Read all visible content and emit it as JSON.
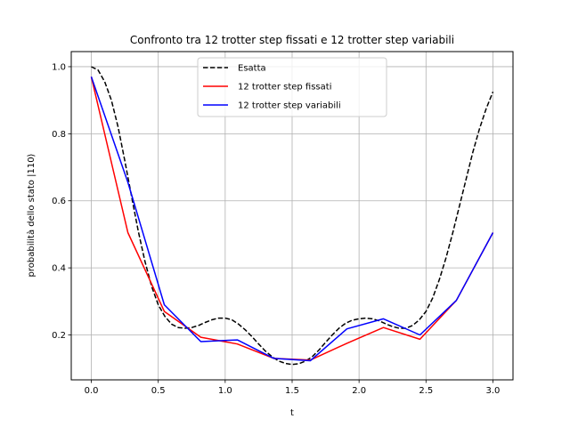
{
  "chart_data": {
    "type": "line",
    "title": "Confronto tra 12 trotter step fissati e 12 trotter step variabili",
    "xlabel": "t",
    "ylabel": "probabilità dello stato |110⟩",
    "xlim": [
      -0.15,
      3.15
    ],
    "ylim": [
      0.066,
      1.045
    ],
    "xticks": [
      0.0,
      0.5,
      1.0,
      1.5,
      2.0,
      2.5,
      3.0
    ],
    "xtick_labels": [
      "0.0",
      "0.5",
      "1.0",
      "1.5",
      "2.0",
      "2.5",
      "3.0"
    ],
    "yticks": [
      0.2,
      0.4,
      0.6,
      0.8,
      1.0
    ],
    "ytick_labels": [
      "0.2",
      "0.4",
      "0.6",
      "0.8",
      "1.0"
    ],
    "grid": true,
    "legend_position": "top-center",
    "series": [
      {
        "name": "Esatta",
        "color": "#000000",
        "style": "dashed",
        "x": [
          0.0,
          0.05,
          0.1,
          0.15,
          0.2,
          0.25,
          0.3,
          0.35,
          0.4,
          0.45,
          0.5,
          0.55,
          0.6,
          0.65,
          0.7,
          0.75,
          0.8,
          0.85,
          0.9,
          0.95,
          1.0,
          1.05,
          1.1,
          1.15,
          1.2,
          1.25,
          1.3,
          1.35,
          1.4,
          1.45,
          1.5,
          1.55,
          1.6,
          1.65,
          1.7,
          1.75,
          1.8,
          1.85,
          1.9,
          1.95,
          2.0,
          2.05,
          2.1,
          2.15,
          2.2,
          2.25,
          2.3,
          2.35,
          2.4,
          2.45,
          2.5,
          2.55,
          2.6,
          2.65,
          2.7,
          2.75,
          2.8,
          2.85,
          2.9,
          2.95,
          3.0
        ],
        "y": [
          1.0,
          0.99,
          0.955,
          0.9,
          0.82,
          0.72,
          0.615,
          0.51,
          0.42,
          0.345,
          0.29,
          0.255,
          0.232,
          0.222,
          0.22,
          0.222,
          0.228,
          0.237,
          0.245,
          0.25,
          0.25,
          0.245,
          0.232,
          0.215,
          0.195,
          0.173,
          0.152,
          0.135,
          0.122,
          0.115,
          0.112,
          0.114,
          0.122,
          0.135,
          0.155,
          0.178,
          0.2,
          0.22,
          0.235,
          0.244,
          0.248,
          0.25,
          0.248,
          0.242,
          0.233,
          0.225,
          0.22,
          0.22,
          0.228,
          0.245,
          0.27,
          0.31,
          0.365,
          0.43,
          0.505,
          0.585,
          0.665,
          0.745,
          0.815,
          0.875,
          0.925
        ]
      },
      {
        "name": "12 trotter step fissati",
        "color": "#ff0000",
        "style": "solid",
        "x": [
          0.0,
          0.273,
          0.545,
          0.818,
          1.091,
          1.364,
          1.636,
          1.909,
          2.182,
          2.455,
          2.727,
          3.0
        ],
        "y": [
          0.97,
          0.505,
          0.27,
          0.193,
          0.173,
          0.13,
          0.125,
          0.175,
          0.222,
          0.187,
          0.303,
          0.505
        ]
      },
      {
        "name": "12 trotter step variabili",
        "color": "#0000ff",
        "style": "solid",
        "x": [
          0.0,
          0.273,
          0.545,
          0.818,
          1.091,
          1.364,
          1.636,
          1.909,
          2.182,
          2.455,
          2.727,
          3.0
        ],
        "y": [
          0.97,
          0.655,
          0.29,
          0.18,
          0.185,
          0.13,
          0.123,
          0.218,
          0.248,
          0.2,
          0.303,
          0.505
        ]
      }
    ]
  }
}
